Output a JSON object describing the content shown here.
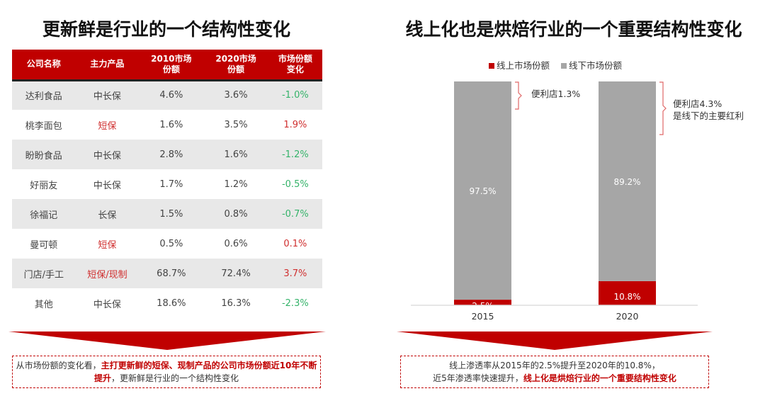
{
  "left": {
    "title": "更新鲜是行业的一个结构性变化",
    "headers": [
      "公司名称",
      "主力产品",
      "2010市场\n份额",
      "2020市场\n份额",
      "市场份额\n变化"
    ],
    "rows": [
      [
        "达利食品",
        "中长保",
        "4.6%",
        "3.6%",
        "-1.0%"
      ],
      [
        "桃李面包",
        "短保",
        "1.6%",
        "3.5%",
        "1.9%"
      ],
      [
        "盼盼食品",
        "中长保",
        "2.8%",
        "1.6%",
        "-1.2%"
      ],
      [
        "好丽友",
        "中长保",
        "1.7%",
        "1.2%",
        "-0.5%"
      ],
      [
        "徐福记",
        "长保",
        "1.5%",
        "0.8%",
        "-0.7%"
      ],
      [
        "曼可顿",
        "短保",
        "0.5%",
        "0.6%",
        "0.1%"
      ],
      [
        "门店/手工",
        "短保/现制",
        "68.7%",
        "72.4%",
        "3.7%"
      ],
      [
        "其他",
        "中长保",
        "18.6%",
        "16.3%",
        "-2.3%"
      ]
    ],
    "summary_plain": "从市场份额的变化看，",
    "summary_bold": "主打更新鲜的短保、现制产品的公司市场份额近10年不断提升",
    "summary_tail": "，更新鲜是行业的一个结构性变化"
  },
  "right": {
    "title": "线上化也是烘焙行业的一个重要结构性变化",
    "summary_line1": "线上渗透率从2015年的2.5%提升至2020年的10.8%，",
    "summary_plain": "近5年渗透率快速提升，",
    "summary_bold": "线上化是烘焙行业的一个重要结构性变化"
  },
  "chart_data": {
    "type": "bar",
    "stacked": true,
    "categories": [
      "2015",
      "2020"
    ],
    "series": [
      {
        "name": "线上市场份额",
        "values": [
          2.5,
          10.8
        ],
        "labels": [
          "2.5%",
          "10.8%"
        ],
        "color": "#c00000"
      },
      {
        "name": "线下市场份额",
        "values": [
          97.5,
          89.2
        ],
        "labels": [
          "97.5%",
          "89.2%"
        ],
        "color": "#a6a6a6"
      }
    ],
    "ylim": [
      0,
      100
    ],
    "legend": "top",
    "annotations": [
      "便利店1.3%",
      "便利店4.3%\n是线下的主要红利"
    ]
  },
  "colors": {
    "accent": "#c00000",
    "positive": "#d03030",
    "negative": "#35b36a"
  }
}
